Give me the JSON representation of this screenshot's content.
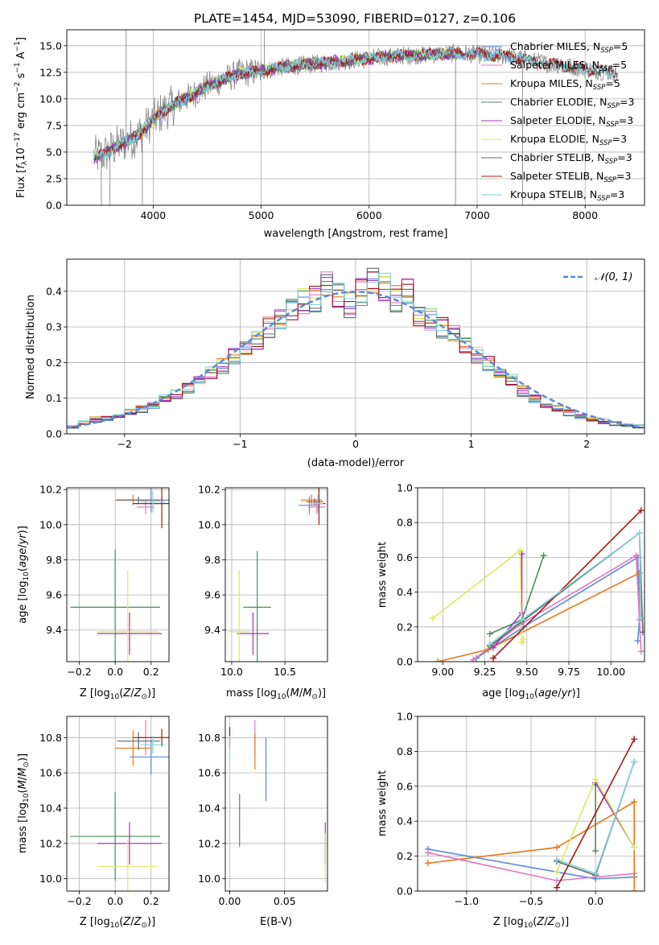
{
  "title": "PLATE=1454, MJD=53090, FIBERID=0127, z=0.106",
  "colors": {
    "chabrier_miles": "#5b8bd6",
    "salpeter_miles": "#e377c2",
    "kroupa_miles": "#e6781e",
    "chabrier_elodie": "#4e8a5a",
    "salpeter_elodie": "#9b35c6",
    "kroupa_elodie": "#dfe860",
    "chabrier_stelib": "#666666",
    "salpeter_stelib": "#a01a1a",
    "kroupa_stelib": "#7fd4d8",
    "data": "#888888",
    "normal": "#5b8bd6"
  },
  "legend": {
    "l0": "Chabrier MILES, N",
    "l1": "Salpeter MILES, N",
    "l2": "Kroupa MILES, N",
    "l3": "Chabrier ELODIE, N",
    "l4": "Salpeter ELODIE, N",
    "l5": "Kroupa ELODIE, N",
    "l6": "Chabrier STELIB, N",
    "l7": "Salpeter STELIB, N",
    "l8": "Kroupa STELIB, N",
    "sub": "SSP",
    "n0": "=5",
    "n1": "=5",
    "n2": "=5",
    "n3": "=3",
    "n4": "=3",
    "n5": "=3",
    "n6": "=3",
    "n7": "=3",
    "n8": "=3",
    "normal": "𝒩(0, 1)"
  },
  "chart_data": [
    {
      "type": "line",
      "title": "PLATE=1454, MJD=53090, FIBERID=0127, z=0.106",
      "xlabel": "wavelength [Angstrom, rest frame]",
      "ylabel": "Flux [f_λ 10^-17 erg cm^-2 s^-1 A^-1]",
      "xlim": [
        3200,
        8550
      ],
      "ylim": [
        0,
        16.5
      ],
      "x_ticks": [
        "4000",
        "5000",
        "6000",
        "7000",
        "8000"
      ],
      "y_ticks": [
        "0.0",
        "2.5",
        "5.0",
        "7.5",
        "10.0",
        "12.5",
        "15.0"
      ],
      "spectrum_trend": {
        "x": [
          3450,
          3550,
          3650,
          3750,
          3850,
          3950,
          4050,
          4150,
          4250,
          4350,
          4500,
          4650,
          4800,
          5000,
          5200,
          5400,
          5600,
          5800,
          6000,
          6200,
          6400,
          6600,
          6800,
          7000,
          7300,
          7600,
          7900,
          8300
        ],
        "y": [
          4.6,
          4.8,
          5.5,
          6.0,
          6.5,
          7.5,
          8.5,
          9.2,
          9.8,
          10.3,
          11.2,
          11.8,
          12.4,
          12.6,
          13.0,
          13.2,
          13.4,
          13.6,
          13.8,
          14.0,
          14.1,
          14.2,
          14.3,
          14.2,
          14.0,
          13.4,
          13.0,
          12.4
        ]
      }
    },
    {
      "type": "bar",
      "xlabel": "(data-model)/error",
      "ylabel": "Normed distribution",
      "xlim": [
        -2.5,
        2.5
      ],
      "ylim": [
        0,
        0.49
      ],
      "x_ticks": [
        "−2",
        "−1",
        "0",
        "1",
        "2"
      ],
      "y_ticks": [
        "0.0",
        "0.1",
        "0.2",
        "0.3",
        "0.4"
      ],
      "bin_centers": [
        -2.45,
        -2.35,
        -2.25,
        -2.15,
        -2.05,
        -1.95,
        -1.85,
        -1.75,
        -1.65,
        -1.55,
        -1.45,
        -1.35,
        -1.25,
        -1.15,
        -1.05,
        -0.95,
        -0.85,
        -0.75,
        -0.65,
        -0.55,
        -0.45,
        -0.35,
        -0.25,
        -0.15,
        -0.05,
        0.05,
        0.15,
        0.25,
        0.35,
        0.45,
        0.55,
        0.65,
        0.75,
        0.85,
        0.95,
        1.05,
        1.15,
        1.25,
        1.35,
        1.45,
        1.55,
        1.65,
        1.75,
        1.85,
        1.95,
        2.05,
        2.15,
        2.25,
        2.35,
        2.45
      ],
      "histogram": [
        0.02,
        0.03,
        0.04,
        0.045,
        0.05,
        0.06,
        0.07,
        0.08,
        0.1,
        0.11,
        0.13,
        0.15,
        0.17,
        0.19,
        0.22,
        0.24,
        0.26,
        0.3,
        0.32,
        0.35,
        0.37,
        0.38,
        0.42,
        0.39,
        0.36,
        0.4,
        0.43,
        0.41,
        0.38,
        0.4,
        0.33,
        0.32,
        0.3,
        0.28,
        0.25,
        0.22,
        0.2,
        0.17,
        0.15,
        0.12,
        0.1,
        0.08,
        0.07,
        0.06,
        0.05,
        0.04,
        0.035,
        0.03,
        0.025,
        0.02
      ],
      "normal_curve": {
        "name": "𝒩(0, 1)",
        "mean": 0,
        "sigma": 1
      }
    },
    {
      "type": "scatter",
      "xlabel": "Z [log10(Z/Z⊙)]",
      "ylabel": "age [log10(age/yr)]",
      "xlim": [
        -0.27,
        0.3
      ],
      "ylim": [
        9.22,
        10.21
      ],
      "x_ticks": [
        "−0.2",
        "0.0",
        "0.2"
      ],
      "y_ticks": [
        "9.4",
        "9.6",
        "9.8",
        "10.0",
        "10.2"
      ],
      "points": [
        {
          "series": "chabrier_miles",
          "x": 0.2,
          "y": 10.14,
          "xerr": 0.12,
          "yerr": 0.07
        },
        {
          "series": "salpeter_miles",
          "x": 0.17,
          "y": 10.1,
          "xerr": 0.05,
          "yerr": 0.04
        },
        {
          "series": "kroupa_miles",
          "x": 0.1,
          "y": 10.14,
          "xerr": 0.1,
          "yerr": 0.03
        },
        {
          "series": "chabrier_elodie",
          "x": 0.0,
          "y": 9.53,
          "xerr": 0.25,
          "yerr": 0.33
        },
        {
          "series": "salpeter_elodie",
          "x": 0.08,
          "y": 9.38,
          "xerr": 0.18,
          "yerr": 0.12
        },
        {
          "series": "kroupa_elodie",
          "x": 0.07,
          "y": 9.39,
          "xerr": 0.17,
          "yerr": 0.35
        },
        {
          "series": "chabrier_stelib",
          "x": 0.13,
          "y": 10.14,
          "xerr": 0.12,
          "yerr": 0.02
        },
        {
          "series": "salpeter_stelib",
          "x": 0.26,
          "y": 10.12,
          "xerr": 0.16,
          "yerr": 0.14
        },
        {
          "series": "kroupa_stelib",
          "x": 0.21,
          "y": 10.13,
          "xerr": 0.07,
          "yerr": 0.06
        }
      ]
    },
    {
      "type": "scatter",
      "xlabel": "mass [log10(M/M⊙)]",
      "xlim": [
        9.94,
        10.9
      ],
      "ylim": [
        9.22,
        10.21
      ],
      "x_ticks": [
        "10.0",
        "10.5"
      ],
      "y_ticks": [
        "9.4",
        "9.6",
        "9.8",
        "10.0",
        "10.2"
      ],
      "points": [
        {
          "series": "chabrier_miles",
          "x": 10.73,
          "y": 10.11,
          "xerr": 0.1,
          "yerr": 0.05
        },
        {
          "series": "salpeter_miles",
          "x": 10.8,
          "y": 10.1,
          "xerr": 0.08,
          "yerr": 0.04
        },
        {
          "series": "kroupa_miles",
          "x": 10.75,
          "y": 10.14,
          "xerr": 0.1,
          "yerr": 0.03
        },
        {
          "series": "chabrier_elodie",
          "x": 10.24,
          "y": 9.53,
          "xerr": 0.13,
          "yerr": 0.32
        },
        {
          "series": "salpeter_elodie",
          "x": 10.2,
          "y": 9.38,
          "xerr": 0.15,
          "yerr": 0.12
        },
        {
          "series": "kroupa_elodie",
          "x": 10.07,
          "y": 9.39,
          "xerr": 0.1,
          "yerr": 0.35
        },
        {
          "series": "chabrier_stelib",
          "x": 10.78,
          "y": 10.13,
          "xerr": 0.08,
          "yerr": 0.02
        },
        {
          "series": "salpeter_stelib",
          "x": 10.82,
          "y": 10.12,
          "xerr": 0.06,
          "yerr": 0.12
        },
        {
          "series": "kroupa_stelib",
          "x": 10.81,
          "y": 10.12,
          "xerr": 0.05,
          "yerr": 0.05
        }
      ]
    },
    {
      "type": "line",
      "xlabel": "age [log10(age/yr)]",
      "ylabel": "mass weight",
      "xlim": [
        8.85,
        10.2
      ],
      "ylim": [
        0,
        1.0
      ],
      "x_ticks": [
        "9.00",
        "9.25",
        "9.50",
        "9.75",
        "10.00"
      ],
      "y_ticks": [
        "0.0",
        "0.2",
        "0.4",
        "0.6",
        "0.8",
        "1.0"
      ],
      "series": [
        {
          "key": "chabrier_miles",
          "x": [
            9.2,
            9.48,
            10.16,
            10.17,
            10.16
          ],
          "y": [
            0.02,
            0.2,
            0.6,
            0.24,
            0.12
          ]
        },
        {
          "key": "salpeter_miles",
          "x": [
            9.18,
            9.47,
            10.15,
            10.17,
            10.18
          ],
          "y": [
            0.01,
            0.22,
            0.61,
            0.24,
            0.06
          ]
        },
        {
          "key": "kroupa_miles",
          "x": [
            8.97,
            9.27,
            10.17,
            10.18
          ],
          "y": [
            0.0,
            0.07,
            0.51,
            0.25
          ]
        },
        {
          "key": "chabrier_elodie",
          "x": [
            9.6,
            9.47,
            9.28
          ],
          "y": [
            0.61,
            0.24,
            0.16
          ]
        },
        {
          "key": "salpeter_elodie",
          "x": [
            9.3,
            9.47,
            9.47
          ],
          "y": [
            0.08,
            0.28,
            0.62
          ]
        },
        {
          "key": "kroupa_elodie",
          "x": [
            8.94,
            9.46,
            9.47,
            9.48
          ],
          "y": [
            0.25,
            0.64,
            0.11,
            0.13
          ]
        },
        {
          "key": "chabrier_stelib",
          "x": [
            9.28,
            9.47,
            10.17,
            10.19
          ],
          "y": [
            0.09,
            0.23,
            0.74,
            0.17
          ]
        },
        {
          "key": "salpeter_stelib",
          "x": [
            9.3,
            10.18
          ],
          "y": [
            0.02,
            0.87
          ]
        },
        {
          "key": "kroupa_stelib",
          "x": [
            9.28,
            9.47,
            10.17,
            10.18
          ],
          "y": [
            0.1,
            0.24,
            0.74,
            0.25
          ]
        }
      ]
    },
    {
      "type": "scatter",
      "xlabel": "Z [log10(Z/Z⊙)]",
      "ylabel": "mass [log10(M/M⊙)]",
      "xlim": [
        -0.27,
        0.3
      ],
      "ylim": [
        9.93,
        10.92
      ],
      "x_ticks": [
        "−0.2",
        "0.0",
        "0.2"
      ],
      "y_ticks": [
        "10.0",
        "10.2",
        "10.4",
        "10.6",
        "10.8"
      ],
      "points": [
        {
          "series": "chabrier_miles",
          "x": 0.2,
          "y": 10.69,
          "xerr": 0.12,
          "yerr": 0.1
        },
        {
          "series": "salpeter_miles",
          "x": 0.17,
          "y": 10.8,
          "xerr": 0.05,
          "yerr": 0.1
        },
        {
          "series": "kroupa_miles",
          "x": 0.1,
          "y": 10.74,
          "xerr": 0.1,
          "yerr": 0.1
        },
        {
          "series": "chabrier_elodie",
          "x": 0.0,
          "y": 10.24,
          "xerr": 0.25,
          "yerr": 0.25
        },
        {
          "series": "salpeter_elodie",
          "x": 0.08,
          "y": 10.2,
          "xerr": 0.18,
          "yerr": 0.12
        },
        {
          "series": "kroupa_elodie",
          "x": 0.07,
          "y": 10.07,
          "xerr": 0.17,
          "yerr": 0.15
        },
        {
          "series": "chabrier_stelib",
          "x": 0.13,
          "y": 10.78,
          "xerr": 0.12,
          "yerr": 0.05
        },
        {
          "series": "salpeter_stelib",
          "x": 0.26,
          "y": 10.8,
          "xerr": 0.16,
          "yerr": 0.05
        },
        {
          "series": "kroupa_stelib",
          "x": 0.21,
          "y": 10.76,
          "xerr": 0.07,
          "yerr": 0.05
        }
      ]
    },
    {
      "type": "scatter",
      "xlabel": "E(B-V)",
      "xlim": [
        -0.004,
        0.089
      ],
      "ylim": [
        9.93,
        10.92
      ],
      "x_ticks": [
        "0.00",
        "0.05"
      ],
      "y_ticks": [
        "10.0",
        "10.2",
        "10.4",
        "10.6",
        "10.8"
      ],
      "points": [
        {
          "series": "chabrier_miles",
          "x": 0.033,
          "y": 10.62,
          "xerr": 0,
          "yerr": 0.18
        },
        {
          "series": "salpeter_miles",
          "x": 0.023,
          "y": 10.8,
          "xerr": 0,
          "yerr": 0.1
        },
        {
          "series": "kroupa_miles",
          "x": 0.023,
          "y": 10.72,
          "xerr": 0,
          "yerr": 0.1
        },
        {
          "series": "chabrier_elodie",
          "x": 0.009,
          "y": 10.33,
          "xerr": 0,
          "yerr": 0.15
        },
        {
          "series": "salpeter_elodie",
          "x": 0.087,
          "y": 10.2,
          "xerr": 0,
          "yerr": 0.12
        },
        {
          "series": "kroupa_elodie",
          "x": 0.087,
          "y": 10.12,
          "xerr": 0,
          "yerr": 0.14
        },
        {
          "series": "chabrier_stelib",
          "x": 0.0,
          "y": 10.8,
          "xerr": 0,
          "yerr": 0.05
        },
        {
          "series": "salpeter_stelib",
          "x": 0.0,
          "y": 10.8,
          "xerr": 0,
          "yerr": 0.06
        },
        {
          "series": "kroupa_stelib",
          "x": 0.0,
          "y": 10.75,
          "xerr": 0,
          "yerr": 0.06
        }
      ]
    },
    {
      "type": "line",
      "xlabel": "Z [log10(Z/Z⊙)]",
      "ylabel": "mass weight",
      "xlim": [
        -1.38,
        0.38
      ],
      "ylim": [
        0,
        1.0
      ],
      "x_ticks": [
        "−1.0",
        "−0.5",
        "0.0"
      ],
      "y_ticks": [
        "0.0",
        "0.2",
        "0.4",
        "0.6",
        "0.8",
        "1.0"
      ],
      "series": [
        {
          "key": "chabrier_miles",
          "x": [
            -1.3,
            0.0,
            0.3
          ],
          "y": [
            0.24,
            0.07,
            0.08
          ]
        },
        {
          "key": "salpeter_miles",
          "x": [
            -1.3,
            -0.3,
            0.3
          ],
          "y": [
            0.22,
            0.06,
            0.1
          ]
        },
        {
          "key": "kroupa_miles",
          "x": [
            -1.3,
            -0.3,
            0.3,
            0.3
          ],
          "y": [
            0.16,
            0.25,
            0.51,
            0.0
          ]
        },
        {
          "key": "chabrier_elodie",
          "x": [
            0.0,
            0.0
          ],
          "y": [
            0.61,
            0.23
          ]
        },
        {
          "key": "salpeter_elodie",
          "x": [
            0.0,
            0.3
          ],
          "y": [
            0.62,
            0.25
          ]
        },
        {
          "key": "kroupa_elodie",
          "x": [
            -0.3,
            0.0,
            0.3
          ],
          "y": [
            0.11,
            0.64,
            0.25
          ]
        },
        {
          "key": "chabrier_stelib",
          "x": [
            -0.3,
            0.0,
            0.3
          ],
          "y": [
            0.17,
            0.09,
            0.74
          ]
        },
        {
          "key": "salpeter_stelib",
          "x": [
            -0.3,
            0.3
          ],
          "y": [
            0.02,
            0.87
          ]
        },
        {
          "key": "kroupa_stelib",
          "x": [
            -0.3,
            0.0,
            0.3
          ],
          "y": [
            0.18,
            0.1,
            0.74
          ]
        }
      ]
    }
  ]
}
